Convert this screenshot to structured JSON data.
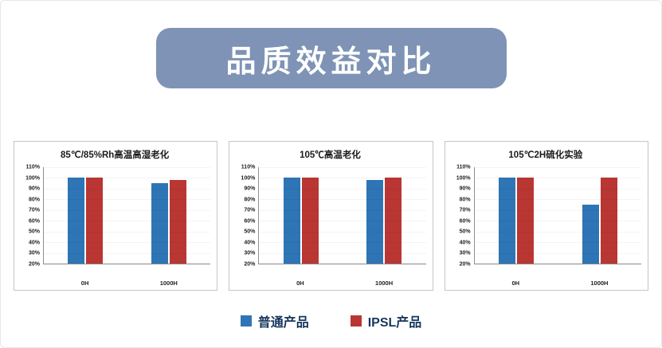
{
  "page": {
    "title": "品质效益对比"
  },
  "colors": {
    "banner": "#7E93B5",
    "ordinary_blue": "#2E75B6",
    "ipsl_red": "#B93633"
  },
  "legend": [
    {
      "label": "普通产品",
      "color": "#2E75B6"
    },
    {
      "label": "IPSL产品",
      "color": "#B93633"
    }
  ],
  "chart_data": [
    {
      "type": "bar",
      "title": "85℃/85%Rh高温高湿老化",
      "categories": [
        "0H",
        "1000H"
      ],
      "series": [
        {
          "name": "普通产品",
          "color": "#2E75B6",
          "values": [
            100,
            95
          ]
        },
        {
          "name": "IPSL产品",
          "color": "#B93633",
          "values": [
            100,
            98
          ]
        }
      ],
      "ylim": [
        20,
        110
      ],
      "yticks": [
        "110%",
        "100%",
        "90%",
        "80%",
        "70%",
        "60%",
        "50%",
        "40%",
        "30%",
        "20%"
      ],
      "grid": false,
      "legend_position": "bottom-shared"
    },
    {
      "type": "bar",
      "title": "105℃高温老化",
      "categories": [
        "0H",
        "1000H"
      ],
      "series": [
        {
          "name": "普通产品",
          "color": "#2E75B6",
          "values": [
            100,
            98
          ]
        },
        {
          "name": "IPSL产品",
          "color": "#B93633",
          "values": [
            100,
            100
          ]
        }
      ],
      "ylim": [
        20,
        110
      ],
      "yticks": [
        "110%",
        "100%",
        "90%",
        "80%",
        "70%",
        "60%",
        "50%",
        "40%",
        "30%",
        "20%"
      ],
      "grid": false,
      "legend_position": "bottom-shared"
    },
    {
      "type": "bar",
      "title": "105℃2H硫化实验",
      "categories": [
        "0H",
        "1000H"
      ],
      "series": [
        {
          "name": "普通产品",
          "color": "#2E75B6",
          "values": [
            100,
            75
          ]
        },
        {
          "name": "IPSL产品",
          "color": "#B93633",
          "values": [
            100,
            100
          ]
        }
      ],
      "ylim": [
        20,
        110
      ],
      "yticks": [
        "110%",
        "100%",
        "90%",
        "80%",
        "70%",
        "60%",
        "50%",
        "40%",
        "30%",
        "20%"
      ],
      "grid": false,
      "legend_position": "bottom-shared"
    }
  ]
}
